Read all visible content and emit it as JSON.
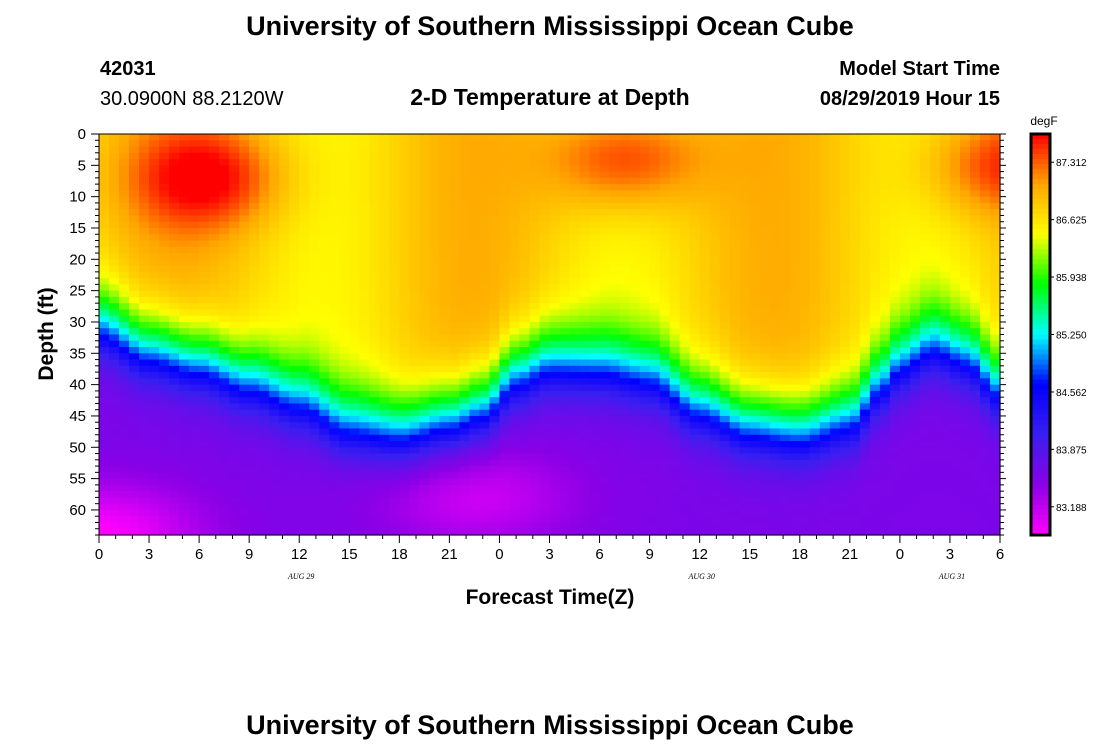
{
  "page_title": "University of Southern Mississippi Ocean Cube",
  "footer_title": "University of Southern Mississippi Ocean Cube",
  "station": {
    "id": "42031",
    "coords": "30.0900N 88.2120W"
  },
  "model_start": {
    "label": "Model Start Time",
    "value": "08/29/2019 Hour 15"
  },
  "chart_data": {
    "type": "heatmap",
    "title": "2-D Temperature at Depth",
    "xlabel": "Forecast Time(Z)",
    "ylabel": "Depth (ft)",
    "x_ticks": [
      "0",
      "3",
      "6",
      "9",
      "12",
      "15",
      "18",
      "21",
      "0",
      "3",
      "6",
      "9",
      "12",
      "15",
      "18",
      "21",
      "0",
      "3",
      "6"
    ],
    "date_labels": [
      {
        "label": "AUG 29",
        "at_tick": 4
      },
      {
        "label": "AUG 30",
        "at_tick": 12
      },
      {
        "label": "AUG 31",
        "at_tick": 17
      }
    ],
    "y_ticks": [
      0,
      5,
      10,
      15,
      20,
      25,
      30,
      35,
      40,
      45,
      50,
      55,
      60
    ],
    "ylim": [
      0,
      64
    ],
    "x_range_hours": [
      0,
      54
    ],
    "colorbar": {
      "unit": "degF",
      "labels": [
        "87.312",
        "86.625",
        "85.938",
        "85.250",
        "84.562",
        "83.875",
        "83.188"
      ],
      "min": 82.85,
      "max": 87.65,
      "colors": [
        "#ff00ff",
        "#8a00e6",
        "#3a1ff0",
        "#0000ff",
        "#00ffff",
        "#00ff00",
        "#ffff00",
        "#ffa500",
        "#ff0000"
      ]
    },
    "thermocline_depth_ft": [
      [
        0,
        29
      ],
      [
        3,
        33
      ],
      [
        6,
        35
      ],
      [
        9,
        38
      ],
      [
        12,
        41
      ],
      [
        15,
        45
      ],
      [
        18,
        46
      ],
      [
        21,
        44
      ],
      [
        23,
        42
      ],
      [
        25,
        37
      ],
      [
        27,
        35
      ],
      [
        30,
        35.5
      ],
      [
        33,
        37
      ],
      [
        36,
        42
      ],
      [
        39,
        45
      ],
      [
        42,
        46
      ],
      [
        45,
        44
      ],
      [
        47,
        38
      ],
      [
        48,
        35
      ],
      [
        50,
        32
      ],
      [
        52,
        34
      ],
      [
        54,
        39
      ]
    ],
    "warm_cores": [
      {
        "hour": 6.5,
        "depth_ft": 7,
        "temp_f": 87.6
      },
      {
        "hour": 31.5,
        "depth_ft": 4,
        "temp_f": 87.6
      },
      {
        "hour": 54,
        "depth_ft": 5,
        "temp_f": 87.5
      }
    ],
    "cold_cores": [
      {
        "hour": 0,
        "depth_ft": 64,
        "temp_f": 82.85
      },
      {
        "hour": 22.5,
        "depth_ft": 58,
        "temp_f": 83.1
      }
    ]
  }
}
